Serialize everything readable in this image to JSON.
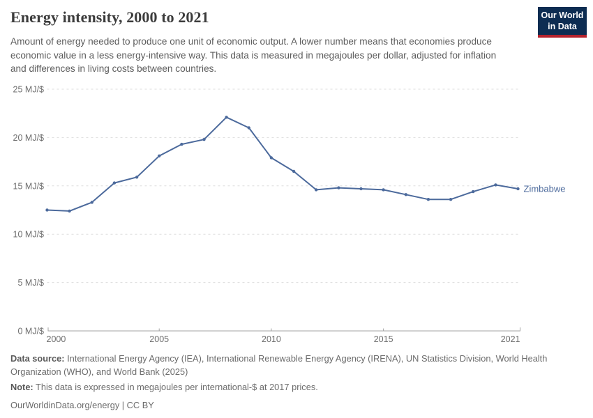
{
  "header": {
    "title": "Energy intensity, 2000 to 2021",
    "subtitle": "Amount of energy needed to produce one unit of economic output. A lower number means that economies produce economic value in a less energy-intensive way. This data is measured in megajoules per dollar, adjusted for inflation and differences in living costs between countries.",
    "logo_line1": "Our World",
    "logo_line2": "in Data",
    "logo_bg_color": "#0d2d52",
    "logo_stripe_color": "#b5232d"
  },
  "chart_data": {
    "type": "line",
    "title": "Energy intensity, 2000 to 2021",
    "xlabel": "",
    "ylabel": "MJ/$",
    "xlim": [
      2000,
      2021
    ],
    "ylim": [
      0,
      25
    ],
    "grid": "horizontal-dashed",
    "legend_position": "end-of-line-label",
    "x": [
      2000,
      2001,
      2002,
      2003,
      2004,
      2005,
      2006,
      2007,
      2008,
      2009,
      2010,
      2011,
      2012,
      2013,
      2014,
      2015,
      2016,
      2017,
      2018,
      2019,
      2020,
      2021
    ],
    "series": [
      {
        "name": "Zimbabwe",
        "color": "#4c6a9c",
        "values": [
          12.5,
          12.4,
          13.3,
          15.3,
          15.9,
          18.1,
          19.3,
          19.8,
          22.1,
          21.0,
          17.9,
          16.5,
          14.6,
          14.8,
          14.7,
          14.6,
          14.1,
          13.6,
          13.6,
          14.4,
          15.1,
          14.7
        ]
      }
    ],
    "x_ticks": [
      {
        "value": 2000,
        "label": "2000"
      },
      {
        "value": 2005,
        "label": "2005"
      },
      {
        "value": 2010,
        "label": "2010"
      },
      {
        "value": 2015,
        "label": "2015"
      },
      {
        "value": 2021,
        "label": "2021"
      }
    ],
    "y_ticks": [
      {
        "value": 0,
        "label": "0 MJ/$"
      },
      {
        "value": 5,
        "label": "5 MJ/$"
      },
      {
        "value": 10,
        "label": "10 MJ/$"
      },
      {
        "value": 15,
        "label": "15 MJ/$"
      },
      {
        "value": 20,
        "label": "20 MJ/$"
      },
      {
        "value": 25,
        "label": "25 MJ/$"
      }
    ],
    "colors": {
      "gridline": "#dddddd",
      "axis_line": "#a3a3a3",
      "tick_text": "#6e6e6e"
    }
  },
  "footer": {
    "source_label": "Data source:",
    "source_text": " International Energy Agency (IEA), International Renewable Energy Agency (IRENA), UN Statistics Division, World Health Organization (WHO), and World Bank (2025)",
    "note_label": "Note:",
    "note_text": " This data is expressed in megajoules per international-$ at 2017 prices.",
    "link": "OurWorldinData.org/energy | CC BY"
  }
}
